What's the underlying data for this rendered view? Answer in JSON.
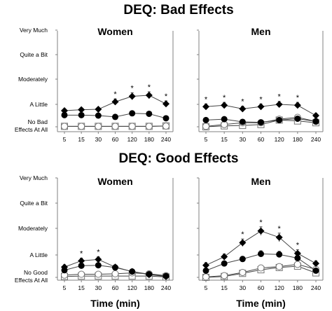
{
  "panel_titles": [
    "DEQ: Bad Effects",
    "DEQ: Good Effects"
  ],
  "chart_data": [
    {
      "type": "line",
      "title": "Women",
      "group": "DEQ: Bad Effects",
      "x": [
        "5",
        "15",
        "30",
        "60",
        "120",
        "180",
        "240"
      ],
      "y_tick_labels": [
        "No Bad Effects At All",
        "A Little",
        "Moderately",
        "Quite a Bit",
        "Very Much"
      ],
      "ylim": [
        0,
        4
      ],
      "series": [
        {
          "marker": "diamond-filled",
          "values": [
            0.72,
            0.76,
            0.78,
            1.1,
            1.32,
            1.36,
            1.02
          ],
          "errors": [
            0.08,
            0.08,
            0.08,
            0.12,
            0.14,
            0.14,
            0.12
          ]
        },
        {
          "marker": "circle-filled",
          "values": [
            0.52,
            0.52,
            0.5,
            0.44,
            0.6,
            0.58,
            0.38
          ],
          "errors": [
            0.08,
            0.08,
            0.08,
            0.08,
            0.1,
            0.1,
            0.08
          ]
        },
        {
          "marker": "circle-open",
          "values": [
            0.02,
            0.02,
            0.02,
            0.02,
            0.02,
            0.02,
            0.03
          ],
          "errors": [
            0,
            0,
            0,
            0,
            0,
            0,
            0
          ]
        },
        {
          "marker": "square-open",
          "values": [
            0.02,
            0.02,
            0.02,
            0.02,
            0.02,
            0.02,
            0.04
          ],
          "errors": [
            0,
            0,
            0,
            0,
            0,
            0,
            0
          ]
        }
      ],
      "annotations": [
        {
          "x": "60",
          "text": "*"
        },
        {
          "x": "120",
          "text": "*"
        },
        {
          "x": "180",
          "text": "*"
        },
        {
          "x": "240",
          "text": "*"
        }
      ]
    },
    {
      "type": "line",
      "title": "Men",
      "group": "DEQ: Bad Effects",
      "x": [
        "5",
        "15",
        "30",
        "60",
        "120",
        "180",
        "240"
      ],
      "y_tick_labels": [
        "No Bad Effects At All",
        "A Little",
        "Moderately",
        "Quite a Bit",
        "Very Much"
      ],
      "ylim": [
        0,
        4
      ],
      "series": [
        {
          "marker": "diamond-filled",
          "values": [
            0.9,
            0.96,
            0.8,
            0.9,
            1.0,
            0.96,
            0.5
          ],
          "errors": [
            0.12,
            0.12,
            0.12,
            0.12,
            0.12,
            0.12,
            0.1
          ]
        },
        {
          "marker": "circle-filled",
          "values": [
            0.3,
            0.34,
            0.22,
            0.2,
            0.3,
            0.36,
            0.24
          ],
          "errors": [
            0.08,
            0.08,
            0.08,
            0.08,
            0.08,
            0.08,
            0.08
          ]
        },
        {
          "marker": "circle-open",
          "values": [
            0.02,
            0.1,
            0.18,
            0.18,
            0.34,
            0.42,
            0.24
          ],
          "errors": [
            0.04,
            0.06,
            0.06,
            0.06,
            0.08,
            0.08,
            0.08
          ]
        },
        {
          "marker": "square-open",
          "values": [
            0.0,
            0.04,
            0.06,
            0.1,
            0.3,
            0.26,
            0.18
          ],
          "errors": [
            0.02,
            0.04,
            0.04,
            0.06,
            0.08,
            0.08,
            0.08
          ]
        }
      ],
      "annotations": [
        {
          "x": "5",
          "text": "*"
        },
        {
          "x": "15",
          "text": "*"
        },
        {
          "x": "30",
          "text": "*"
        },
        {
          "x": "60",
          "text": "*"
        },
        {
          "x": "120",
          "text": "*"
        },
        {
          "x": "180",
          "text": "*"
        }
      ]
    },
    {
      "type": "line",
      "title": "Women",
      "group": "DEQ: Good Effects",
      "x": [
        "5",
        "15",
        "30",
        "60",
        "120",
        "180",
        "240"
      ],
      "y_tick_labels": [
        "No Good Effects At All",
        "A Little",
        "Moderately",
        "Quite a Bit",
        "Very Much"
      ],
      "ylim": [
        0,
        4
      ],
      "xlabel": "Time (min)",
      "series": [
        {
          "marker": "diamond-filled",
          "values": [
            0.46,
            0.74,
            0.8,
            0.46,
            0.26,
            0.12,
            0.04
          ],
          "errors": [
            0.1,
            0.12,
            0.12,
            0.1,
            0.08,
            0.06,
            0.04
          ]
        },
        {
          "marker": "circle-filled",
          "values": [
            0.32,
            0.52,
            0.54,
            0.44,
            0.26,
            0.14,
            0.06
          ],
          "errors": [
            0.08,
            0.1,
            0.1,
            0.08,
            0.08,
            0.06,
            0.04
          ]
        },
        {
          "marker": "circle-open",
          "values": [
            0.1,
            0.14,
            0.14,
            0.16,
            0.2,
            0.16,
            0.08
          ],
          "errors": [
            0.04,
            0.04,
            0.04,
            0.04,
            0.06,
            0.06,
            0.04
          ]
        },
        {
          "marker": "square-open",
          "values": [
            0.04,
            0.06,
            0.06,
            0.06,
            0.06,
            0.06,
            0.02
          ],
          "errors": [
            0.02,
            0.02,
            0.02,
            0.02,
            0.02,
            0.02,
            0.02
          ]
        }
      ],
      "annotations": [
        {
          "x": "15",
          "text": "*"
        },
        {
          "x": "30",
          "text": "*"
        }
      ]
    },
    {
      "type": "line",
      "title": "Men",
      "group": "DEQ: Good Effects",
      "x": [
        "5",
        "15",
        "30",
        "60",
        "120",
        "180",
        "240"
      ],
      "y_tick_labels": [
        "No Good Effects At All",
        "A Little",
        "Moderately",
        "Quite a Bit",
        "Very Much"
      ],
      "ylim": [
        0,
        4
      ],
      "xlabel": "Time (min)",
      "series": [
        {
          "marker": "diamond-filled",
          "values": [
            0.54,
            0.92,
            1.46,
            1.9,
            1.66,
            1.06,
            0.62
          ],
          "errors": [
            0.12,
            0.12,
            0.14,
            0.16,
            0.16,
            0.14,
            0.12
          ]
        },
        {
          "marker": "circle-filled",
          "values": [
            0.3,
            0.62,
            0.82,
            1.04,
            1.02,
            0.86,
            0.3
          ],
          "errors": [
            0.08,
            0.1,
            0.12,
            0.12,
            0.12,
            0.12,
            0.1
          ]
        },
        {
          "marker": "circle-open",
          "values": [
            0.02,
            0.08,
            0.22,
            0.42,
            0.48,
            0.58,
            0.36
          ],
          "errors": [
            0.04,
            0.06,
            0.08,
            0.1,
            0.1,
            0.12,
            0.1
          ]
        },
        {
          "marker": "square-open",
          "values": [
            0.0,
            0.04,
            0.18,
            0.34,
            0.44,
            0.5,
            0.2
          ],
          "errors": [
            0.02,
            0.04,
            0.06,
            0.08,
            0.1,
            0.1,
            0.08
          ]
        }
      ],
      "annotations": [
        {
          "x": "30",
          "text": "*"
        },
        {
          "x": "60",
          "text": "*"
        },
        {
          "x": "120",
          "text": "*"
        },
        {
          "x": "180",
          "text": "*"
        }
      ]
    }
  ]
}
